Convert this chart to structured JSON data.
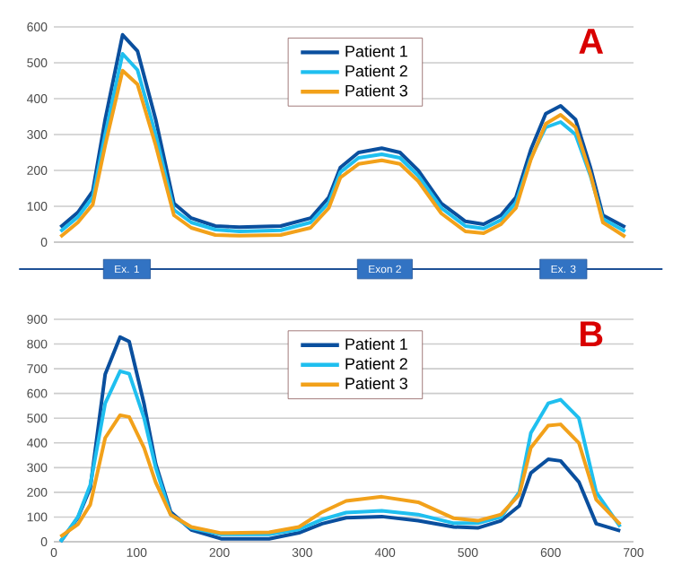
{
  "chart_data": [
    {
      "type": "line",
      "title": "A",
      "xlim": [
        0,
        700
      ],
      "ylim": [
        0,
        600
      ],
      "yticks": [
        0,
        100,
        200,
        300,
        400,
        500,
        600
      ],
      "tick_labels": "y",
      "grid": "y",
      "legend": "top",
      "line_style": "solid",
      "annotations": [
        "Ex. 1",
        "Exon 2",
        "Ex. 3"
      ],
      "x": [
        8,
        29,
        47,
        62,
        83,
        101,
        123,
        145,
        166,
        195,
        224,
        274,
        310,
        332,
        346,
        368,
        396,
        418,
        440,
        468,
        497,
        519,
        540,
        558,
        576,
        594,
        612,
        630,
        648,
        663,
        690
      ],
      "series": [
        {
          "name": "Patient 1",
          "color": "#0a4f9e",
          "values": [
            42,
            83,
            142,
            342,
            578,
            533,
            342,
            108,
            67,
            45,
            42,
            45,
            67,
            125,
            208,
            250,
            262,
            250,
            200,
            108,
            58,
            50,
            75,
            125,
            258,
            358,
            380,
            342,
            208,
            75,
            42
          ]
        },
        {
          "name": "Patient 2",
          "color": "#1fbfef",
          "values": [
            30,
            70,
            125,
            300,
            525,
            480,
            300,
            90,
            55,
            35,
            30,
            33,
            55,
            110,
            195,
            235,
            245,
            235,
            185,
            95,
            45,
            38,
            62,
            110,
            235,
            320,
            335,
            300,
            185,
            65,
            30
          ]
        },
        {
          "name": "Patient 3",
          "color": "#f2a11a",
          "values": [
            15,
            55,
            105,
            270,
            478,
            440,
            270,
            75,
            40,
            20,
            18,
            20,
            40,
            95,
            180,
            218,
            228,
            218,
            170,
            80,
            30,
            25,
            50,
            95,
            230,
            330,
            355,
            320,
            190,
            55,
            15
          ]
        }
      ]
    },
    {
      "type": "line",
      "title": "B",
      "xlim": [
        0,
        700
      ],
      "xticks": [
        0,
        100,
        200,
        300,
        400,
        500,
        600,
        700
      ],
      "ylim": [
        0,
        900
      ],
      "yticks": [
        0,
        100,
        200,
        300,
        400,
        500,
        600,
        700,
        800,
        900
      ],
      "grid": "y",
      "legend": "top",
      "line_style": "solid",
      "x": [
        8,
        29,
        44,
        62,
        80,
        91,
        109,
        123,
        141,
        166,
        202,
        260,
        296,
        324,
        353,
        396,
        440,
        483,
        512,
        540,
        562,
        576,
        597,
        612,
        634,
        655,
        684
      ],
      "series": [
        {
          "name": "Patient 1",
          "color": "#0a4f9e",
          "values": [
            0,
            97,
            218,
            678,
            828,
            810,
            557,
            315,
            121,
            48,
            12,
            12,
            36,
            73,
            97,
            102,
            85,
            60,
            56,
            85,
            145,
            278,
            334,
            327,
            242,
            73,
            44
          ]
        },
        {
          "name": "Patient 2",
          "color": "#1fbfef",
          "values": [
            0,
            100,
            230,
            560,
            690,
            680,
            500,
            300,
            110,
            55,
            30,
            30,
            50,
            90,
            118,
            125,
            110,
            75,
            75,
            100,
            200,
            440,
            560,
            575,
            500,
            200,
            60
          ]
        },
        {
          "name": "Patient 3",
          "color": "#f2a11a",
          "values": [
            20,
            70,
            150,
            420,
            512,
            505,
            380,
            240,
            110,
            60,
            35,
            38,
            60,
            120,
            165,
            182,
            160,
            95,
            85,
            110,
            190,
            380,
            470,
            475,
            400,
            170,
            70
          ]
        }
      ]
    }
  ]
}
